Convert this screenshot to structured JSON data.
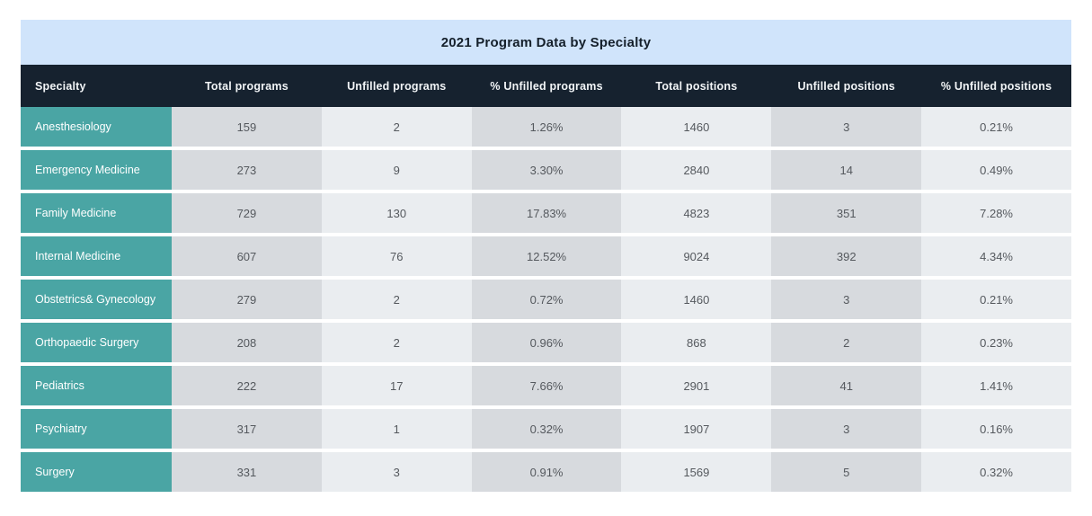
{
  "chart_data": {
    "type": "table",
    "title": "2021 Program Data by Specialty",
    "columns": [
      "Specialty",
      "Total programs",
      "Unfilled programs",
      "% Unfilled programs",
      "Total positions",
      "Unfilled positions",
      "% Unfilled positions"
    ],
    "rows": [
      [
        "Anesthesiology",
        "159",
        "2",
        "1.26%",
        "1460",
        "3",
        "0.21%"
      ],
      [
        "Emergency Medicine",
        "273",
        "9",
        "3.30%",
        "2840",
        "14",
        "0.49%"
      ],
      [
        "Family Medicine",
        "729",
        "130",
        "17.83%",
        "4823",
        "351",
        "7.28%"
      ],
      [
        "Internal Medicine",
        "607",
        "76",
        "12.52%",
        "9024",
        "392",
        "4.34%"
      ],
      [
        "Obstetrics& Gynecology",
        "279",
        "2",
        "0.72%",
        "1460",
        "3",
        "0.21%"
      ],
      [
        "Orthopaedic Surgery",
        "208",
        "2",
        "0.96%",
        "868",
        "2",
        "0.23%"
      ],
      [
        "Pediatrics",
        "222",
        "17",
        "7.66%",
        "2901",
        "41",
        "1.41%"
      ],
      [
        "Psychiatry",
        "317",
        "1",
        "0.32%",
        "1907",
        "3",
        "0.16%"
      ],
      [
        "Surgery",
        "331",
        "3",
        "0.91%",
        "1569",
        "5",
        "0.32%"
      ]
    ],
    "layout": {
      "legend": "none",
      "grid": "off",
      "row_striping": "column-alternating"
    }
  },
  "colors": {
    "title_bar_bg": "#d0e4fb",
    "title_text": "#15202b",
    "header_bg": "#16222f",
    "header_text": "#f2f5f7",
    "specialty_bg": "#4aa5a4",
    "specialty_text": "#ffffff",
    "cell_bg_dark": "#d7dade",
    "cell_bg_light": "#eaedf0",
    "cell_text": "#55595e",
    "page_bg": "#ffffff"
  }
}
